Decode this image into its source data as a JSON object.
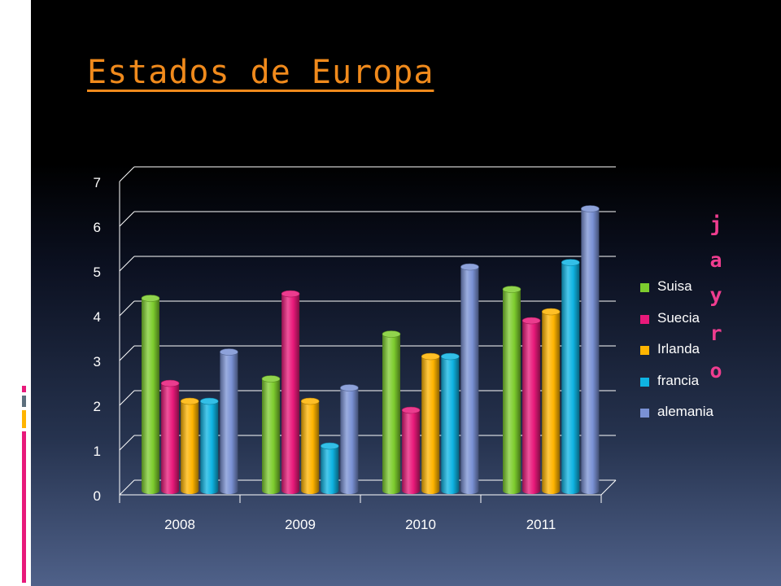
{
  "title": "Estados de Europa",
  "decor_letters": [
    "j",
    "a",
    "y",
    "r",
    "o"
  ],
  "chart_data": {
    "type": "bar",
    "categories": [
      "2008",
      "2009",
      "2010",
      "2011"
    ],
    "series": [
      {
        "name": "Suisa",
        "color": "#7dcc2e",
        "values": [
          4.3,
          2.5,
          3.5,
          4.5
        ]
      },
      {
        "name": "Suecia",
        "color": "#e8197a",
        "values": [
          2.4,
          4.4,
          1.8,
          3.8
        ]
      },
      {
        "name": "Irlanda",
        "color": "#ffb400",
        "values": [
          2.0,
          2.0,
          3.0,
          4.0
        ]
      },
      {
        "name": "francia",
        "color": "#0fb4e3",
        "values": [
          2.0,
          1.0,
          3.0,
          5.1
        ]
      },
      {
        "name": "alemania",
        "color": "#7a91d4",
        "values": [
          3.1,
          2.3,
          5.0,
          6.3
        ]
      }
    ],
    "y_ticks": [
      "0",
      "1",
      "2",
      "3",
      "4",
      "5",
      "6",
      "7"
    ],
    "ylim": [
      0,
      7
    ],
    "grid": true,
    "legend_position": "right",
    "style": "3d-cylinder"
  },
  "colors": {
    "title": "#f08a1c",
    "axis_text": "#ffffff",
    "gridline": "#ffffff",
    "decor_letters": "#ef3d8f"
  }
}
